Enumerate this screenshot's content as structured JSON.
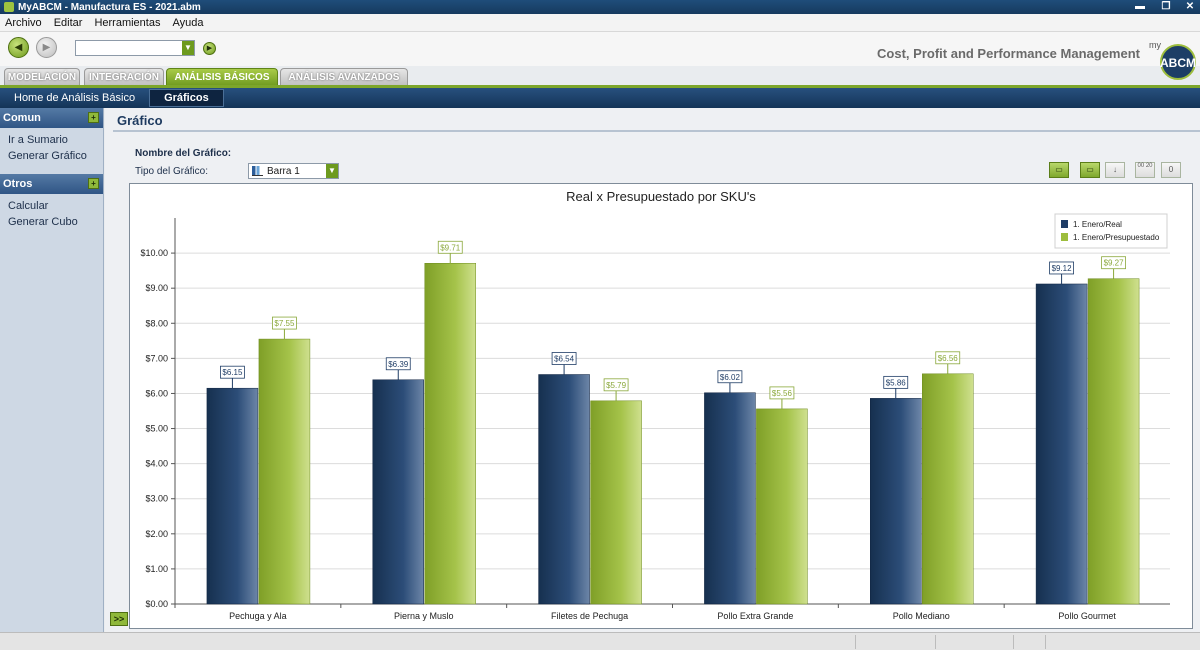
{
  "window": {
    "title": "MyABCM - Manufactura ES - 2021.abm"
  },
  "menu": [
    "Archivo",
    "Editar",
    "Herramientas",
    "Ayuda"
  ],
  "toolbar": {
    "tagline": "Cost, Profit and Performance Management",
    "logo_text": "ABCM",
    "logo_prefix": "my"
  },
  "module_tabs": [
    {
      "label": "MODELACIÓN",
      "active": false
    },
    {
      "label": "INTEGRACIÓN",
      "active": false
    },
    {
      "label": "ANÁLISIS BÁSICOS",
      "active": true
    },
    {
      "label": "ANÁLISIS AVANZADOS",
      "active": false
    }
  ],
  "subnav": [
    {
      "label": "Home de Análisis Básico",
      "active": false
    },
    {
      "label": "Gráficos",
      "active": true
    }
  ],
  "sidebar": {
    "sections": [
      {
        "title": "Comun",
        "toggle": "+",
        "links": [
          "Ir a Sumario",
          "Generar Gráfico"
        ]
      },
      {
        "title": "Otros",
        "toggle": "+",
        "links": [
          "Calcular",
          "Generar Cubo"
        ]
      }
    ],
    "expand_label": ">>"
  },
  "main": {
    "title": "Gráfico",
    "name_label": "Nombre del Gráfico:",
    "type_label": "Tipo del Gráfico:",
    "type_value": "Barra 1",
    "tool_buttons": [
      "▭",
      "▭",
      "↓",
      "00 20",
      "0"
    ]
  },
  "colors": {
    "series_real": "#1f3d66",
    "series_budget": "#9dbd3d",
    "accent": "#7da62a",
    "nav": "#1b416b"
  },
  "chart_data": {
    "type": "bar",
    "title": "Real x Presupuestado por SKU's",
    "categories": [
      "Pechuga y Ala",
      "Pierna y Muslo",
      "Filetes de Pechuga",
      "Pollo Extra Grande",
      "Pollo Mediano",
      "Pollo Gourmet"
    ],
    "series": [
      {
        "name": "1. Enero/Real",
        "values": [
          6.15,
          6.39,
          6.54,
          6.02,
          5.86,
          9.12
        ],
        "labels": [
          "$6.15",
          "$6.39",
          "$6.54",
          "$6.02",
          "$5.86",
          "$9.12"
        ]
      },
      {
        "name": "1. Enero/Presupuestado",
        "values": [
          7.55,
          9.71,
          5.79,
          5.56,
          6.56,
          9.27
        ],
        "labels": [
          "$7.55",
          "$9.71",
          "$5.79",
          "$5.56",
          "$6.56",
          "$9.27"
        ]
      }
    ],
    "yticks": [
      "$0.00",
      "$1.00",
      "$2.00",
      "$3.00",
      "$4.00",
      "$5.00",
      "$6.00",
      "$7.00",
      "$8.00",
      "$9.00",
      "$10.00"
    ],
    "ylim": [
      0,
      11
    ],
    "grid": true,
    "legend": "top-right"
  }
}
